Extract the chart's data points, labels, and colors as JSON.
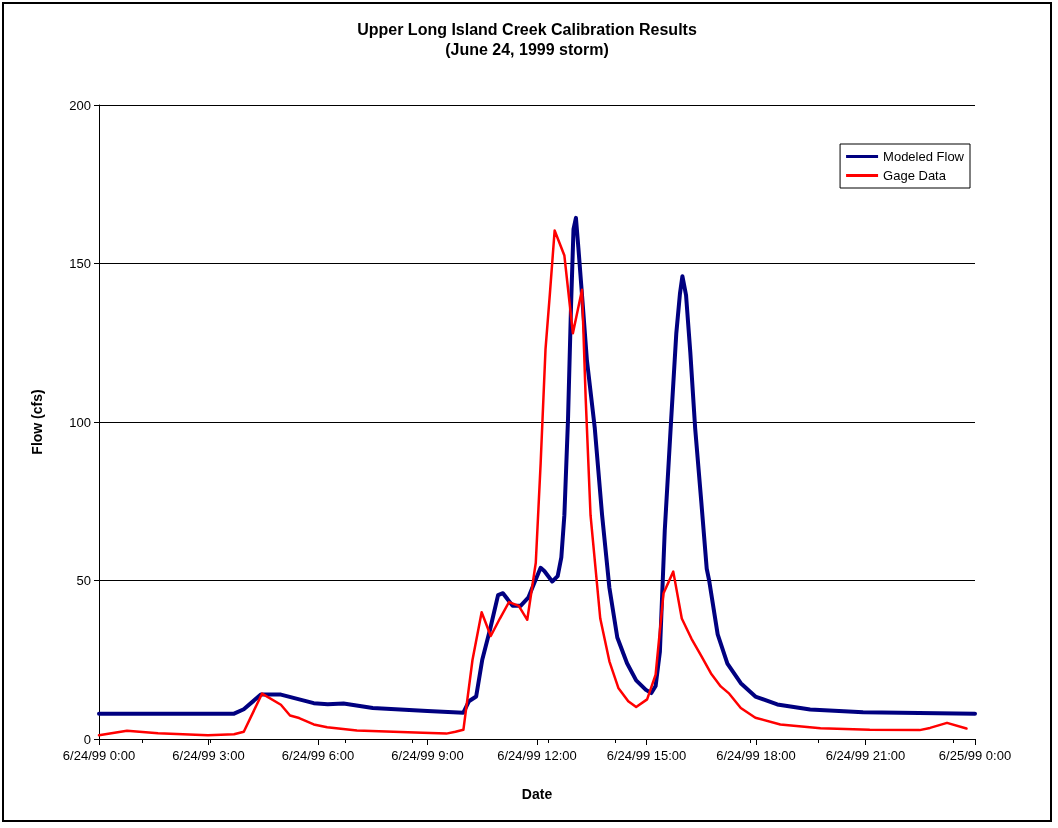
{
  "chart_data": {
    "type": "line",
    "title": "Upper Long Island Creek Calibration Results",
    "subtitle": "(June 24, 1999 storm)",
    "xlabel": "Date",
    "ylabel": "Flow (cfs)",
    "xlim": [
      "1999-06-24T00:00",
      "1999-06-25T00:00"
    ],
    "xticks": [
      {
        "value": "1999-06-24T00:00",
        "label": "6/24/99 0:00"
      },
      {
        "value": "1999-06-24T03:00",
        "label": "6/24/99 3:00"
      },
      {
        "value": "1999-06-24T06:00",
        "label": "6/24/99 6:00"
      },
      {
        "value": "1999-06-24T09:00",
        "label": "6/24/99 9:00"
      },
      {
        "value": "1999-06-24T12:00",
        "label": "6/24/99 12:00"
      },
      {
        "value": "1999-06-24T15:00",
        "label": "6/24/99 15:00"
      },
      {
        "value": "1999-06-24T18:00",
        "label": "6/24/99 18:00"
      },
      {
        "value": "1999-06-24T21:00",
        "label": "6/24/99 21:00"
      },
      {
        "value": "1999-06-25T00:00",
        "label": "6/25/99 0:00"
      }
    ],
    "ylim": [
      0,
      200
    ],
    "yticks": [
      0,
      50,
      100,
      150,
      200
    ],
    "grid": "y",
    "legend": "top right",
    "marker": "none",
    "line_style": "solid",
    "series": [
      {
        "name": "Modeled Flow",
        "color": "#000080",
        "x": [
          "1999-06-24T00:00",
          "1999-06-24T03:42",
          "1999-06-24T03:58",
          "1999-06-24T04:26",
          "1999-06-24T04:59",
          "1999-06-24T05:53",
          "1999-06-24T06:16",
          "1999-06-24T06:42",
          "1999-06-24T07:30",
          "1999-06-24T09:00",
          "1999-06-24T09:59",
          "1999-06-24T10:08",
          "1999-06-24T10:20",
          "1999-06-24T10:30",
          "1999-06-24T10:43",
          "1999-06-24T10:56",
          "1999-06-24T11:04",
          "1999-06-24T11:20",
          "1999-06-24T11:33",
          "1999-06-24T11:46",
          "1999-06-24T11:55",
          "1999-06-24T12:06",
          "1999-06-24T12:12",
          "1999-06-24T12:25",
          "1999-06-24T12:34",
          "1999-06-24T12:40",
          "1999-06-24T12:45",
          "1999-06-24T12:51",
          "1999-06-24T12:56",
          "1999-06-24T13:00",
          "1999-06-24T13:04",
          "1999-06-24T13:08",
          "1999-06-24T13:15",
          "1999-06-24T13:22",
          "1999-06-24T13:35",
          "1999-06-24T13:47",
          "1999-06-24T13:59",
          "1999-06-24T14:12",
          "1999-06-24T14:28",
          "1999-06-24T14:43",
          "1999-06-24T14:59",
          "1999-06-24T15:08",
          "1999-06-24T15:15",
          "1999-06-24T15:22",
          "1999-06-24T15:30",
          "1999-06-24T15:40",
          "1999-06-24T15:49",
          "1999-06-24T15:55",
          "1999-06-24T15:59",
          "1999-06-24T16:05",
          "1999-06-24T16:12",
          "1999-06-24T16:20",
          "1999-06-24T16:30",
          "1999-06-24T16:39",
          "1999-06-24T16:43",
          "1999-06-24T16:57",
          "1999-06-24T17:13",
          "1999-06-24T17:35",
          "1999-06-24T17:59",
          "1999-06-24T18:35",
          "1999-06-24T19:29",
          "1999-06-24T20:56",
          "1999-06-25T00:00"
        ],
        "values": [
          8,
          8,
          9.4,
          14,
          14,
          11.3,
          11,
          11.2,
          9.8,
          8.8,
          8.3,
          11.9,
          13.4,
          25,
          34.7,
          45.4,
          46,
          42,
          42,
          44.7,
          49,
          54,
          53,
          49.7,
          51.4,
          57.3,
          70.6,
          101,
          137,
          160.8,
          164.4,
          155,
          137.5,
          119.6,
          98,
          70.6,
          47.7,
          32,
          23.9,
          18.5,
          15.5,
          14.5,
          16.7,
          27.5,
          65.7,
          99,
          128,
          140.5,
          146,
          140,
          122,
          98,
          75,
          53.7,
          50,
          33,
          23.8,
          17.6,
          13.4,
          10.9,
          9.3,
          8.4,
          8
        ]
      },
      {
        "name": "Gage Data",
        "color": "#ff0000",
        "x": [
          "1999-06-24T00:00",
          "1999-06-24T00:46",
          "1999-06-24T01:37",
          "1999-06-24T02:59",
          "1999-06-24T03:42",
          "1999-06-24T03:58",
          "1999-06-24T04:28",
          "1999-06-24T04:59",
          "1999-06-24T05:14",
          "1999-06-24T05:29",
          "1999-06-24T05:53",
          "1999-06-24T06:15",
          "1999-06-24T07:04",
          "1999-06-24T08:52",
          "1999-06-24T09:31",
          "1999-06-24T09:46",
          "1999-06-24T09:59",
          "1999-06-24T10:14",
          "1999-06-24T10:29",
          "1999-06-24T10:44",
          "1999-06-24T10:59",
          "1999-06-24T11:14",
          "1999-06-24T11:30",
          "1999-06-24T11:44",
          "1999-06-24T11:58",
          "1999-06-24T12:06",
          "1999-06-24T12:14",
          "1999-06-24T12:21",
          "1999-06-24T12:29",
          "1999-06-24T12:45",
          "1999-06-24T12:59",
          "1999-06-24T13:14",
          "1999-06-24T13:20",
          "1999-06-24T13:28",
          "1999-06-24T13:44",
          "1999-06-24T13:59",
          "1999-06-24T14:14",
          "1999-06-24T14:30",
          "1999-06-24T14:43",
          "1999-06-24T15:01",
          "1999-06-24T15:15",
          "1999-06-24T15:28",
          "1999-06-24T15:44",
          "1999-06-24T15:58",
          "1999-06-24T16:14",
          "1999-06-24T16:30",
          "1999-06-24T16:46",
          "1999-06-24T17:02",
          "1999-06-24T17:16",
          "1999-06-24T17:35",
          "1999-06-24T17:59",
          "1999-06-24T18:40",
          "1999-06-24T19:46",
          "1999-06-24T21:07",
          "1999-06-24T22:29",
          "1999-06-24T22:46",
          "1999-06-24T23:14",
          "1999-06-24T23:46"
        ],
        "values": [
          1.2,
          2.6,
          1.8,
          1.2,
          1.5,
          2.3,
          14.3,
          10.8,
          7.4,
          6.6,
          4.6,
          3.7,
          2.7,
          2,
          1.7,
          2.3,
          2.9,
          25,
          40,
          32.5,
          38,
          43.2,
          42,
          37.6,
          55.6,
          87,
          123,
          140,
          160.4,
          152.5,
          128,
          141.7,
          107.6,
          70.6,
          38,
          24.5,
          16,
          11.9,
          10.1,
          12.5,
          20.3,
          46,
          52.8,
          38,
          31.6,
          26.2,
          20.7,
          16.6,
          14.3,
          9.8,
          6.7,
          4.6,
          3.4,
          2.9,
          2.8,
          3.5,
          5.1,
          3.3
        ]
      }
    ]
  }
}
